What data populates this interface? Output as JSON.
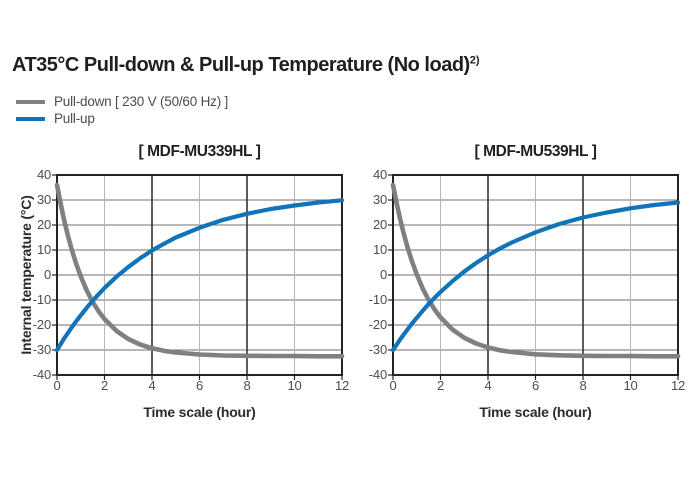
{
  "title": {
    "text": "AT35°C Pull-down & Pull-up Temperature (No load)",
    "superscript": "2)"
  },
  "legend": [
    {
      "label": "Pull-down [ 230 V (50/60 Hz) ]",
      "color": "#7e8083"
    },
    {
      "label": "Pull-up",
      "color": "#1173b8"
    }
  ],
  "chart_data": [
    {
      "type": "line",
      "title": "[ MDF-MU339HL ]",
      "xlabel": "Time scale (hour)",
      "ylabel": "Internal temperature (°C)",
      "xlim": [
        0,
        12
      ],
      "ylim": [
        -40,
        40
      ],
      "x_ticks": [
        0,
        2,
        4,
        6,
        8,
        10,
        12
      ],
      "y_ticks": [
        40,
        30,
        20,
        10,
        0,
        -10,
        -20,
        -30,
        -40
      ],
      "grid": true,
      "legend_position": "top-left-of-figure",
      "series": [
        {
          "name": "Pull-down",
          "color": "#7e8083",
          "x": [
            0,
            0.15,
            0.3,
            0.45,
            0.6,
            0.8,
            1,
            1.25,
            1.5,
            1.75,
            2,
            2.5,
            3,
            3.5,
            4,
            4.5,
            5,
            6,
            7,
            8,
            9,
            10,
            11,
            12
          ],
          "y": [
            36,
            28.6,
            22,
            16.1,
            10.8,
            4.7,
            -0.6,
            -6.1,
            -10.7,
            -14.5,
            -17.6,
            -22.3,
            -25.6,
            -27.8,
            -29.3,
            -30.3,
            -31,
            -31.8,
            -32.2,
            -32.3,
            -32.4,
            -32.4,
            -32.5,
            -32.5
          ]
        },
        {
          "name": "Pull-up",
          "color": "#1173b8",
          "x": [
            0,
            0.15,
            0.3,
            0.45,
            0.6,
            0.8,
            1,
            1.25,
            1.5,
            1.75,
            2,
            2.5,
            3,
            3.5,
            4,
            4.5,
            5,
            6,
            7,
            8,
            9,
            10,
            11,
            12
          ],
          "y": [
            -30,
            -27.7,
            -25.4,
            -23.3,
            -21.2,
            -18.6,
            -16.1,
            -13.1,
            -10.3,
            -7.7,
            -5.2,
            -0.7,
            3.2,
            6.7,
            9.8,
            12.5,
            15,
            18.9,
            22.1,
            24.5,
            26.4,
            27.8,
            29,
            29.9
          ]
        }
      ]
    },
    {
      "type": "line",
      "title": "[ MDF-MU539HL ]",
      "xlabel": "Time scale (hour)",
      "ylabel": "Internal temperature (°C)",
      "xlim": [
        0,
        12
      ],
      "ylim": [
        -40,
        40
      ],
      "x_ticks": [
        0,
        2,
        4,
        6,
        8,
        10,
        12
      ],
      "y_ticks": [
        40,
        30,
        20,
        10,
        0,
        -10,
        -20,
        -30,
        -40
      ],
      "grid": true,
      "series": [
        {
          "name": "Pull-down",
          "color": "#7e8083",
          "x": [
            0,
            0.15,
            0.3,
            0.45,
            0.6,
            0.8,
            1,
            1.25,
            1.5,
            1.75,
            2,
            2.5,
            3,
            3.5,
            4,
            4.5,
            5,
            6,
            7,
            8,
            9,
            10,
            11,
            12
          ],
          "y": [
            36,
            28.8,
            22.4,
            16.6,
            11.4,
            5.4,
            0.2,
            -5.4,
            -10,
            -13.8,
            -16.9,
            -21.8,
            -25.1,
            -27.4,
            -29,
            -30.1,
            -30.8,
            -31.7,
            -32.1,
            -32.3,
            -32.4,
            -32.4,
            -32.5,
            -32.5
          ]
        },
        {
          "name": "Pull-up",
          "color": "#1173b8",
          "x": [
            0,
            0.15,
            0.3,
            0.45,
            0.6,
            0.8,
            1,
            1.25,
            1.5,
            1.75,
            2,
            2.5,
            3,
            3.5,
            4,
            4.5,
            5,
            6,
            7,
            8,
            9,
            10,
            11,
            12
          ],
          "y": [
            -30,
            -27.9,
            -25.8,
            -23.8,
            -21.9,
            -19.4,
            -17.1,
            -14.3,
            -11.6,
            -9.1,
            -6.8,
            -2.5,
            1.4,
            4.8,
            7.9,
            10.6,
            13,
            17.1,
            20.4,
            23,
            25,
            26.7,
            28,
            29
          ]
        }
      ]
    }
  ],
  "style": {
    "background": "#ffffff",
    "title_color": "#1f1f21",
    "text_color": "#4b4c4e",
    "tick_color": "#4c4d4f",
    "grid_horizontal": "#717275",
    "grid_vertical_light": "#b4b6b8",
    "grid_vertical_dark": "#333436",
    "plot_border": "#232426",
    "pull_down_color": "#7e8083",
    "pull_up_color": "#1173b8"
  }
}
